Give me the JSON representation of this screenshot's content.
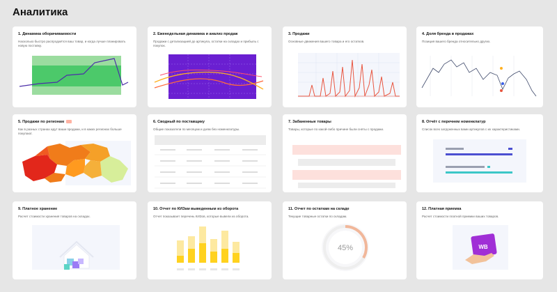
{
  "page": {
    "title": "Аналитика"
  },
  "cards": [
    {
      "title": "1. Динамика оборачиваемости",
      "desc": "Насколько быстро распродаётся ваш товар, и когда лучше планировать новую поставку."
    },
    {
      "title": "2. Еженедельная динамика и анализ продаж",
      "desc": "Продажи с детализацией до артикула, остатки на складах и прибыль с покупок."
    },
    {
      "title": "3. Продажи",
      "desc": "Основные движения вашего товара и его остатков."
    },
    {
      "title": "4. Доля бренда в продажах",
      "desc": "Позиция вашего бренда относительно других."
    },
    {
      "title": "5. Продажи по регионам",
      "desc": "Как в разных странах идут ваши продажи, и в каких регионах больше покупают."
    },
    {
      "title": "6. Сводный по поставщику",
      "desc": "Общие показатели по месяцам и дням без номенклатуры."
    },
    {
      "title": "7. Забаненные товары",
      "desc": "Товары, которые по какой-либо причине были сняты с продажи."
    },
    {
      "title": "8. Отчёт с перечнем номенклатур",
      "desc": "Список всех загруженных вами артикулов с их характеристиками."
    },
    {
      "title": "9. Платное хранение",
      "desc": "Расчет стоимости хранения товаров на складах."
    },
    {
      "title": "10. Отчет по КИЗам выведенным из оборота",
      "desc": "Отчет показывает перечень КИЗов, которые вывели из оборота."
    },
    {
      "title": "11. Отчет по остаткам на складе",
      "desc": "Текущие товарные остатки по складам."
    },
    {
      "title": "12. Платная приемка",
      "desc": "Расчет стоимости платной приемки ваших товаров."
    }
  ],
  "card11": {
    "percent": "45%"
  },
  "card12": {
    "logo": "WB"
  },
  "colors": {
    "accent": "#6a1fd1",
    "green": "#4cc96a",
    "red": "#e8553f",
    "orange": "#f07c1a",
    "yellow": "#ffd21f"
  },
  "icons": [
    "new-badge-icon",
    "house-icon",
    "wb-logo-icon",
    "hand-icon"
  ]
}
